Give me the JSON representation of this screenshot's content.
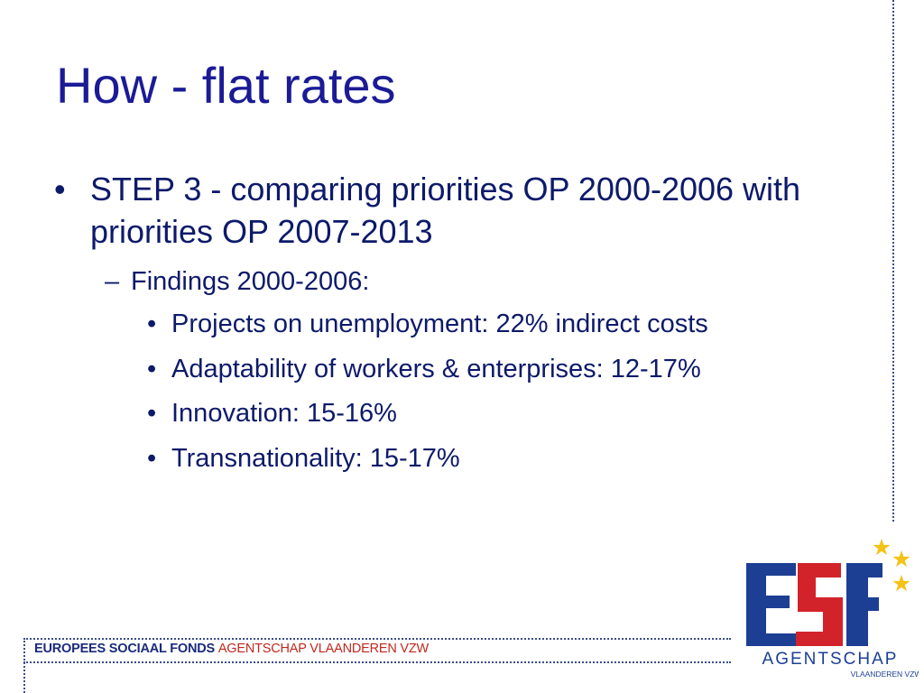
{
  "slide": {
    "title": "How - flat rates",
    "bullet": "STEP 3 - comparing priorities OP 2000-2006 with priorities OP 2007-2013",
    "sub": "Findings 2000-2006:",
    "items": [
      "Projects on unemployment: 22% indirect costs",
      "Adaptability of workers & enterprises: 12-17%",
      "Innovation: 15-16%",
      "Transnationality: 15-17%"
    ]
  },
  "footer": {
    "part1": "EUROPEES SOCIAAL FONDS ",
    "part2": "AGENTSCHAP VLAANDEREN VZW"
  },
  "logo": {
    "mark": "ESF",
    "line1": "AGENTSCHAP",
    "line2": "VLAANDEREN VZW",
    "colors": {
      "blue": "#1c3f94",
      "red": "#d2232a",
      "star": "#f3c318"
    }
  }
}
